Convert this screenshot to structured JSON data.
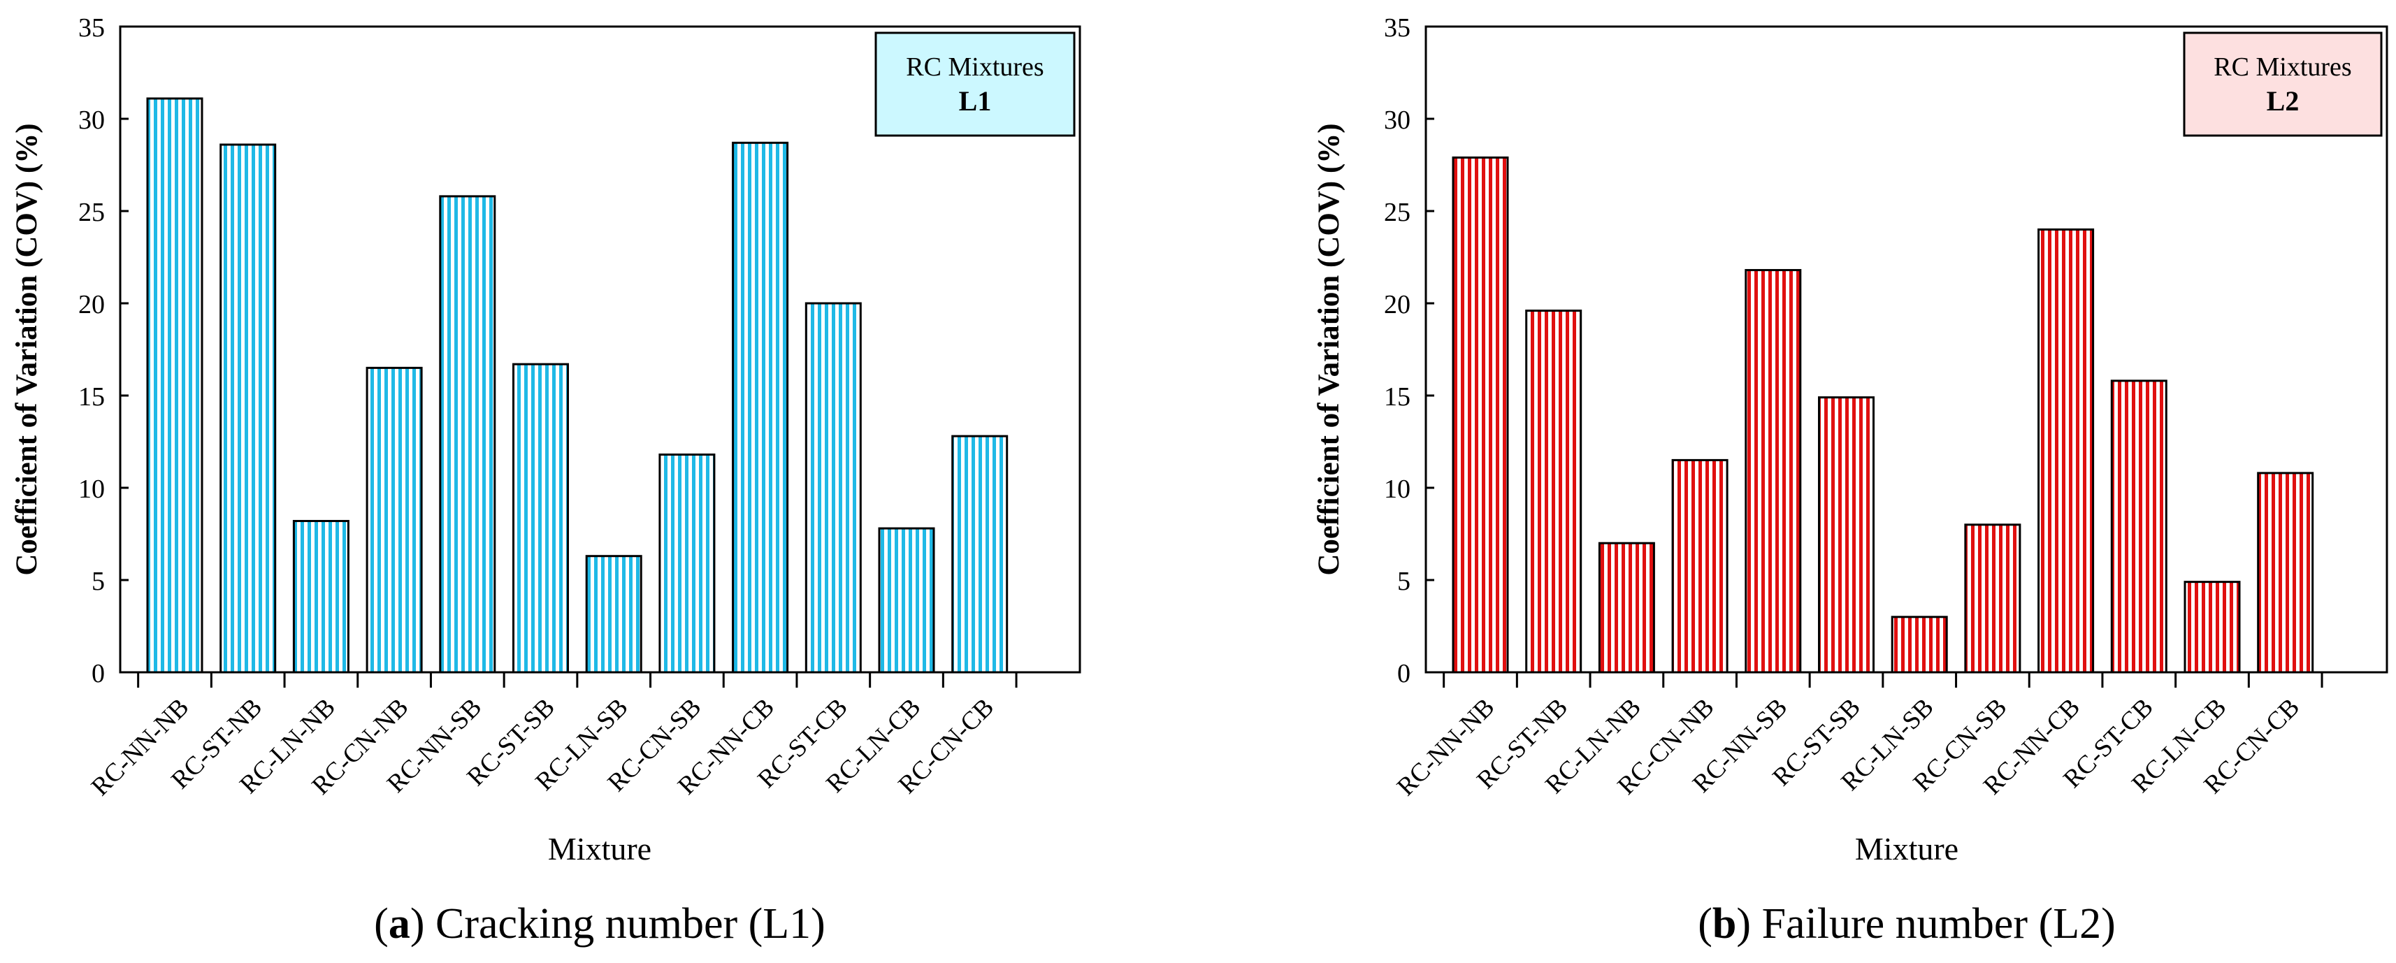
{
  "chart_data": [
    {
      "type": "bar",
      "panel": "a",
      "title": "",
      "xlabel": "Mixture",
      "ylabel": "Coefficient of Variation (COV) (%)",
      "ylim": [
        0,
        35
      ],
      "yticks": [
        0,
        5,
        10,
        15,
        20,
        25,
        30,
        35
      ],
      "categories": [
        "RC-NN-NB",
        "RC-ST-NB",
        "RC-LN-NB",
        "RC-CN-NB",
        "RC-NN-SB",
        "RC-ST-SB",
        "RC-LN-SB",
        "RC-CN-SB",
        "RC-NN-CB",
        "RC-ST-CB",
        "RC-LN-CB",
        "RC-CN-CB"
      ],
      "values": [
        31.1,
        28.6,
        8.2,
        16.5,
        25.8,
        16.7,
        6.3,
        11.8,
        28.7,
        20.0,
        7.8,
        12.8
      ],
      "legend": {
        "line1": "RC Mixtures",
        "line2": "L1",
        "position": "top-right"
      },
      "bar_color": "#1fb9e6",
      "legend_fill": "#ccf8ff",
      "caption": {
        "letter": "a",
        "text": " Cracking number (L1)"
      }
    },
    {
      "type": "bar",
      "panel": "b",
      "title": "",
      "xlabel": "Mixture",
      "ylabel": "Coefficient of Variation (COV) (%)",
      "ylim": [
        0,
        35
      ],
      "yticks": [
        0,
        5,
        10,
        15,
        20,
        25,
        30,
        35
      ],
      "categories": [
        "RC-NN-NB",
        "RC-ST-NB",
        "RC-LN-NB",
        "RC-CN-NB",
        "RC-NN-SB",
        "RC-ST-SB",
        "RC-LN-SB",
        "RC-CN-SB",
        "RC-NN-CB",
        "RC-ST-CB",
        "RC-LN-CB",
        "RC-CN-CB"
      ],
      "values": [
        27.9,
        19.6,
        7.0,
        11.5,
        21.8,
        14.9,
        3.0,
        8.0,
        24.0,
        15.8,
        4.9,
        10.8
      ],
      "legend": {
        "line1": "RC Mixtures",
        "line2": "L2",
        "position": "top-right"
      },
      "bar_color": "#e01010",
      "legend_fill": "#fde0e0",
      "caption": {
        "letter": "b",
        "text": " Failure number (L2)"
      }
    }
  ]
}
